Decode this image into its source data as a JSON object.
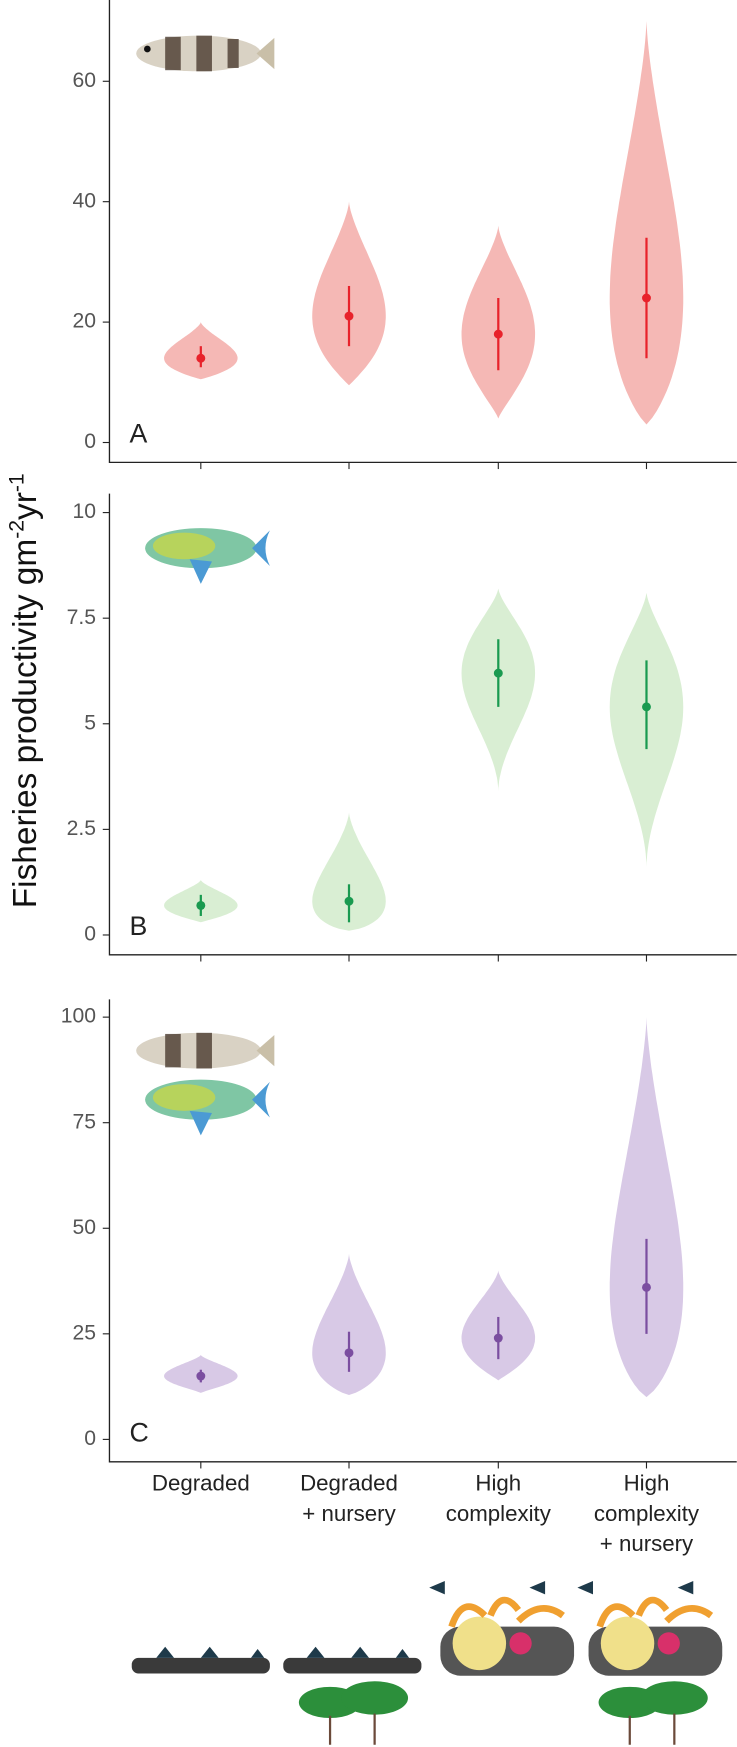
{
  "chart_data": {
    "type": "violin",
    "y_label_parts": [
      "Fisheries productivity gm",
      "-2",
      "yr",
      "-1"
    ],
    "categories": [
      [
        "Degraded"
      ],
      [
        "Degraded",
        "+ nursery"
      ],
      [
        "High",
        "complexity"
      ],
      [
        "High",
        "complexity",
        "+ nursery"
      ]
    ],
    "panels": [
      {
        "label": "A",
        "fill": "#f5b8b5",
        "color": "#e8222b",
        "ylim": [
          -3.3,
          73.5
        ],
        "yticks": [
          0,
          20,
          40,
          60
        ],
        "values": [
          14,
          21,
          18,
          24
        ],
        "lower": [
          12.5,
          16,
          12,
          14
        ],
        "upper": [
          16,
          26,
          24,
          34
        ],
        "violin_min": [
          10.5,
          9.5,
          4,
          3
        ],
        "violin_max": [
          20,
          40,
          36,
          70
        ]
      },
      {
        "label": "B",
        "fill": "#d9eed3",
        "color": "#1a9a50",
        "ylim": [
          -0.47,
          10.45
        ],
        "yticks": [
          0,
          2.5,
          5,
          7.5,
          10
        ],
        "values": [
          0.7,
          0.8,
          6.2,
          5.4
        ],
        "lower": [
          0.45,
          0.3,
          5.4,
          4.4
        ],
        "upper": [
          0.95,
          1.2,
          7.0,
          6.5
        ],
        "violin_min": [
          0.3,
          0.1,
          3.4,
          1.6
        ],
        "violin_max": [
          1.3,
          2.9,
          8.2,
          8.1
        ]
      },
      {
        "label": "C",
        "fill": "#d8c9e6",
        "color": "#7b4ea0",
        "ylim": [
          -5.3,
          104.2
        ],
        "yticks": [
          0,
          25,
          50,
          75,
          100
        ],
        "values": [
          15,
          20.5,
          24,
          36
        ],
        "lower": [
          13.5,
          16,
          19,
          25
        ],
        "upper": [
          16.5,
          25.5,
          29,
          47.5
        ],
        "violin_min": [
          11,
          10.5,
          14,
          10
        ],
        "violin_max": [
          20,
          44,
          40,
          100
        ]
      }
    ]
  }
}
